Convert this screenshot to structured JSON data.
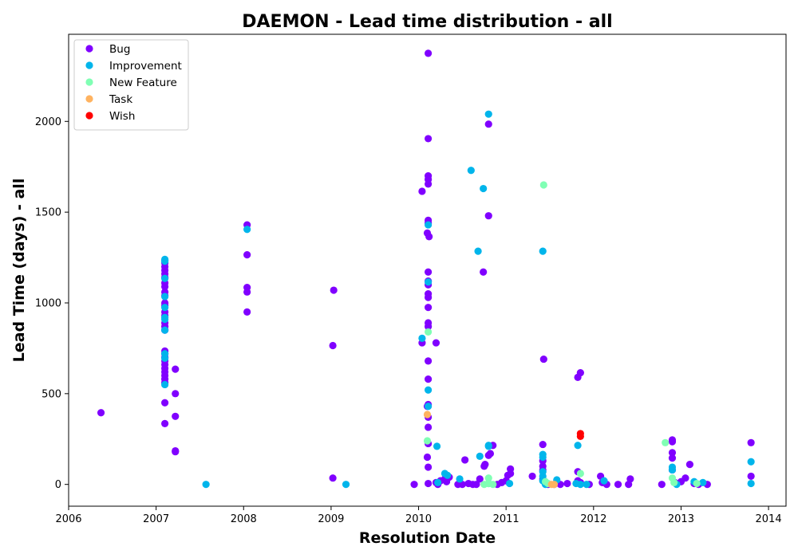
{
  "chart_data": {
    "type": "scatter",
    "title": "DAEMON - Lead time distribution - all",
    "xlabel": "Resolution Date",
    "ylabel": "Lead Time (days) - all",
    "xlim": [
      2006.0,
      2014.2
    ],
    "ylim": [
      -120,
      2480
    ],
    "x_ticks": [
      2006,
      2007,
      2008,
      2009,
      2010,
      2011,
      2012,
      2013,
      2014
    ],
    "y_ticks": [
      0,
      500,
      1000,
      1500,
      2000
    ],
    "grid": false,
    "legend_position": "top-left",
    "series": [
      {
        "name": "Bug",
        "color": "#8000ff",
        "points": [
          [
            2006.37,
            395
          ],
          [
            2007.1,
            1235
          ],
          [
            2007.1,
            1220
          ],
          [
            2007.1,
            1200
          ],
          [
            2007.1,
            1180
          ],
          [
            2007.1,
            1160
          ],
          [
            2007.1,
            1140
          ],
          [
            2007.1,
            1110
          ],
          [
            2007.1,
            1090
          ],
          [
            2007.1,
            1060
          ],
          [
            2007.1,
            1040
          ],
          [
            2007.1,
            1000
          ],
          [
            2007.1,
            985
          ],
          [
            2007.1,
            950
          ],
          [
            2007.1,
            930
          ],
          [
            2007.1,
            890
          ],
          [
            2007.1,
            870
          ],
          [
            2007.1,
            850
          ],
          [
            2007.1,
            735
          ],
          [
            2007.1,
            720
          ],
          [
            2007.1,
            700
          ],
          [
            2007.1,
            680
          ],
          [
            2007.1,
            660
          ],
          [
            2007.1,
            640
          ],
          [
            2007.1,
            620
          ],
          [
            2007.1,
            600
          ],
          [
            2007.1,
            580
          ],
          [
            2007.1,
            560
          ],
          [
            2007.1,
            450
          ],
          [
            2007.1,
            335
          ],
          [
            2007.22,
            635
          ],
          [
            2007.22,
            500
          ],
          [
            2007.22,
            375
          ],
          [
            2007.22,
            185
          ],
          [
            2007.22,
            180
          ],
          [
            2008.04,
            1430
          ],
          [
            2008.04,
            1265
          ],
          [
            2008.04,
            1085
          ],
          [
            2008.04,
            1060
          ],
          [
            2008.04,
            950
          ],
          [
            2009.02,
            765
          ],
          [
            2009.03,
            1070
          ],
          [
            2009.02,
            35
          ],
          [
            2009.95,
            0
          ],
          [
            2010.04,
            1615
          ],
          [
            2010.04,
            780
          ],
          [
            2010.11,
            2375
          ],
          [
            2010.11,
            1905
          ],
          [
            2010.11,
            1700
          ],
          [
            2010.11,
            1680
          ],
          [
            2010.11,
            1655
          ],
          [
            2010.11,
            1455
          ],
          [
            2010.11,
            1440
          ],
          [
            2010.1,
            1385
          ],
          [
            2010.12,
            1365
          ],
          [
            2010.11,
            1170
          ],
          [
            2010.11,
            1120
          ],
          [
            2010.11,
            1100
          ],
          [
            2010.11,
            1050
          ],
          [
            2010.11,
            1030
          ],
          [
            2010.11,
            975
          ],
          [
            2010.11,
            890
          ],
          [
            2010.11,
            870
          ],
          [
            2010.11,
            680
          ],
          [
            2010.11,
            580
          ],
          [
            2010.11,
            440
          ],
          [
            2010.1,
            430
          ],
          [
            2010.11,
            370
          ],
          [
            2010.11,
            315
          ],
          [
            2010.11,
            225
          ],
          [
            2010.1,
            150
          ],
          [
            2010.11,
            95
          ],
          [
            2010.11,
            5
          ],
          [
            2010.2,
            780
          ],
          [
            2010.2,
            10
          ],
          [
            2010.22,
            0
          ],
          [
            2010.25,
            20
          ],
          [
            2010.3,
            30
          ],
          [
            2010.32,
            15
          ],
          [
            2010.35,
            40
          ],
          [
            2010.45,
            0
          ],
          [
            2010.5,
            0
          ],
          [
            2010.53,
            135
          ],
          [
            2010.57,
            5
          ],
          [
            2010.62,
            0
          ],
          [
            2010.66,
            0
          ],
          [
            2010.7,
            30
          ],
          [
            2010.74,
            1170
          ],
          [
            2010.75,
            100
          ],
          [
            2010.76,
            110
          ],
          [
            2010.8,
            1985
          ],
          [
            2010.8,
            1480
          ],
          [
            2010.8,
            160
          ],
          [
            2010.82,
            170
          ],
          [
            2010.85,
            215
          ],
          [
            2010.9,
            0
          ],
          [
            2010.95,
            10
          ],
          [
            2011.0,
            20
          ],
          [
            2011.02,
            50
          ],
          [
            2011.05,
            85
          ],
          [
            2011.05,
            60
          ],
          [
            2011.3,
            45
          ],
          [
            2011.42,
            220
          ],
          [
            2011.43,
            690
          ],
          [
            2011.42,
            130
          ],
          [
            2011.42,
            100
          ],
          [
            2011.42,
            80
          ],
          [
            2011.42,
            30
          ],
          [
            2011.45,
            10
          ],
          [
            2011.48,
            0
          ],
          [
            2011.55,
            0
          ],
          [
            2011.62,
            0
          ],
          [
            2011.7,
            5
          ],
          [
            2011.82,
            590
          ],
          [
            2011.85,
            615
          ],
          [
            2011.82,
            70
          ],
          [
            2011.82,
            20
          ],
          [
            2011.85,
            10
          ],
          [
            2011.95,
            0
          ],
          [
            2012.08,
            45
          ],
          [
            2012.1,
            10
          ],
          [
            2012.15,
            0
          ],
          [
            2012.28,
            0
          ],
          [
            2012.4,
            0
          ],
          [
            2012.42,
            30
          ],
          [
            2012.78,
            0
          ],
          [
            2012.9,
            245
          ],
          [
            2012.9,
            235
          ],
          [
            2012.9,
            175
          ],
          [
            2012.9,
            145
          ],
          [
            2012.9,
            80
          ],
          [
            2012.93,
            10
          ],
          [
            2013.0,
            15
          ],
          [
            2013.05,
            35
          ],
          [
            2013.1,
            110
          ],
          [
            2013.15,
            5
          ],
          [
            2013.2,
            0
          ],
          [
            2013.3,
            0
          ],
          [
            2013.8,
            230
          ],
          [
            2013.8,
            45
          ]
        ]
      },
      {
        "name": "Improvement",
        "color": "#00b5eb",
        "points": [
          [
            2007.1,
            1240
          ],
          [
            2007.1,
            1230
          ],
          [
            2007.1,
            1135
          ],
          [
            2007.1,
            1035
          ],
          [
            2007.1,
            975
          ],
          [
            2007.1,
            920
          ],
          [
            2007.1,
            910
          ],
          [
            2007.1,
            850
          ],
          [
            2007.1,
            720
          ],
          [
            2007.1,
            695
          ],
          [
            2007.1,
            550
          ],
          [
            2007.57,
            0
          ],
          [
            2008.04,
            1405
          ],
          [
            2009.17,
            0
          ],
          [
            2010.04,
            805
          ],
          [
            2010.11,
            1430
          ],
          [
            2010.11,
            1115
          ],
          [
            2010.11,
            520
          ],
          [
            2010.11,
            430
          ],
          [
            2010.21,
            210
          ],
          [
            2010.22,
            10
          ],
          [
            2010.3,
            60
          ],
          [
            2010.33,
            50
          ],
          [
            2010.47,
            30
          ],
          [
            2010.6,
            1730
          ],
          [
            2010.68,
            1285
          ],
          [
            2010.7,
            155
          ],
          [
            2010.74,
            1630
          ],
          [
            2010.8,
            2040
          ],
          [
            2010.8,
            215
          ],
          [
            2010.8,
            210
          ],
          [
            2010.8,
            5
          ],
          [
            2011.04,
            5
          ],
          [
            2011.42,
            1285
          ],
          [
            2011.42,
            165
          ],
          [
            2011.42,
            150
          ],
          [
            2011.42,
            70
          ],
          [
            2011.42,
            45
          ],
          [
            2011.42,
            20
          ],
          [
            2011.45,
            0
          ],
          [
            2011.58,
            25
          ],
          [
            2011.82,
            215
          ],
          [
            2011.8,
            5
          ],
          [
            2011.85,
            0
          ],
          [
            2011.92,
            0
          ],
          [
            2012.12,
            20
          ],
          [
            2012.9,
            95
          ],
          [
            2012.9,
            80
          ],
          [
            2012.95,
            0
          ],
          [
            2013.15,
            15
          ],
          [
            2013.25,
            10
          ],
          [
            2013.8,
            125
          ],
          [
            2013.8,
            5
          ]
        ]
      },
      {
        "name": "New Feature",
        "color": "#80ffb4",
        "points": [
          [
            2010.11,
            840
          ],
          [
            2010.1,
            240
          ],
          [
            2010.8,
            35
          ],
          [
            2010.8,
            5
          ],
          [
            2010.75,
            0
          ],
          [
            2010.85,
            0
          ],
          [
            2011.43,
            1650
          ],
          [
            2011.45,
            15
          ],
          [
            2011.48,
            5
          ],
          [
            2011.85,
            60
          ],
          [
            2012.82,
            230
          ],
          [
            2012.9,
            35
          ],
          [
            2012.92,
            10
          ],
          [
            2013.18,
            5
          ]
        ]
      },
      {
        "name": "Task",
        "color": "#ffb360",
        "points": [
          [
            2010.1,
            385
          ],
          [
            2011.52,
            0
          ],
          [
            2011.55,
            0
          ]
        ]
      },
      {
        "name": "Wish",
        "color": "#ff0000",
        "points": [
          [
            2011.85,
            280
          ],
          [
            2011.85,
            265
          ]
        ]
      }
    ]
  }
}
